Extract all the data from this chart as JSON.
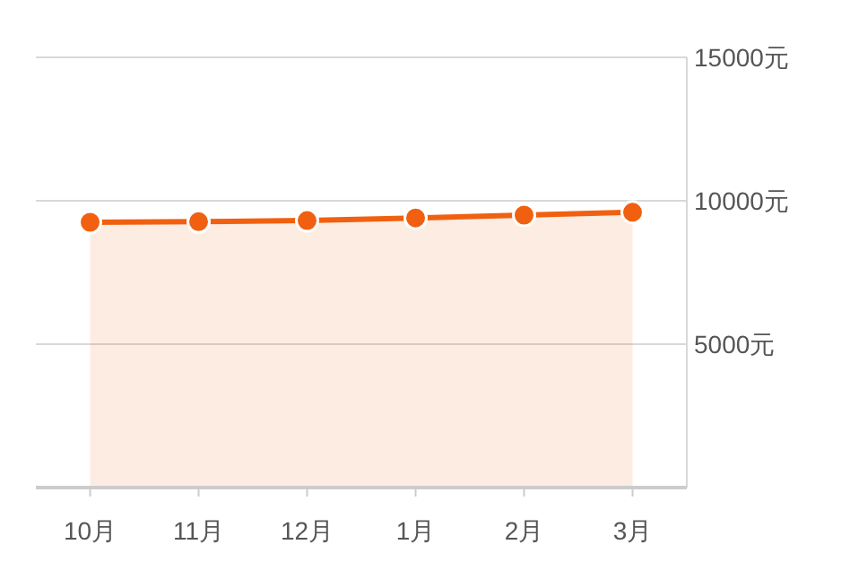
{
  "chart_data": {
    "type": "area",
    "categories": [
      "10月",
      "11月",
      "12月",
      "1月",
      "2月",
      "3月"
    ],
    "series": [
      {
        "color": "#f06010",
        "values": [
          9250,
          9270,
          9310,
          9400,
          9500,
          9600
        ]
      }
    ],
    "ylim": [
      0,
      15000
    ],
    "yticks": [
      {
        "value": 0,
        "label": null
      },
      {
        "value": 5000,
        "label": "5000元"
      },
      {
        "value": 10000,
        "label": "10000元"
      },
      {
        "value": 15000,
        "label": "15000元"
      }
    ],
    "grid": "y",
    "marker": "circle"
  }
}
